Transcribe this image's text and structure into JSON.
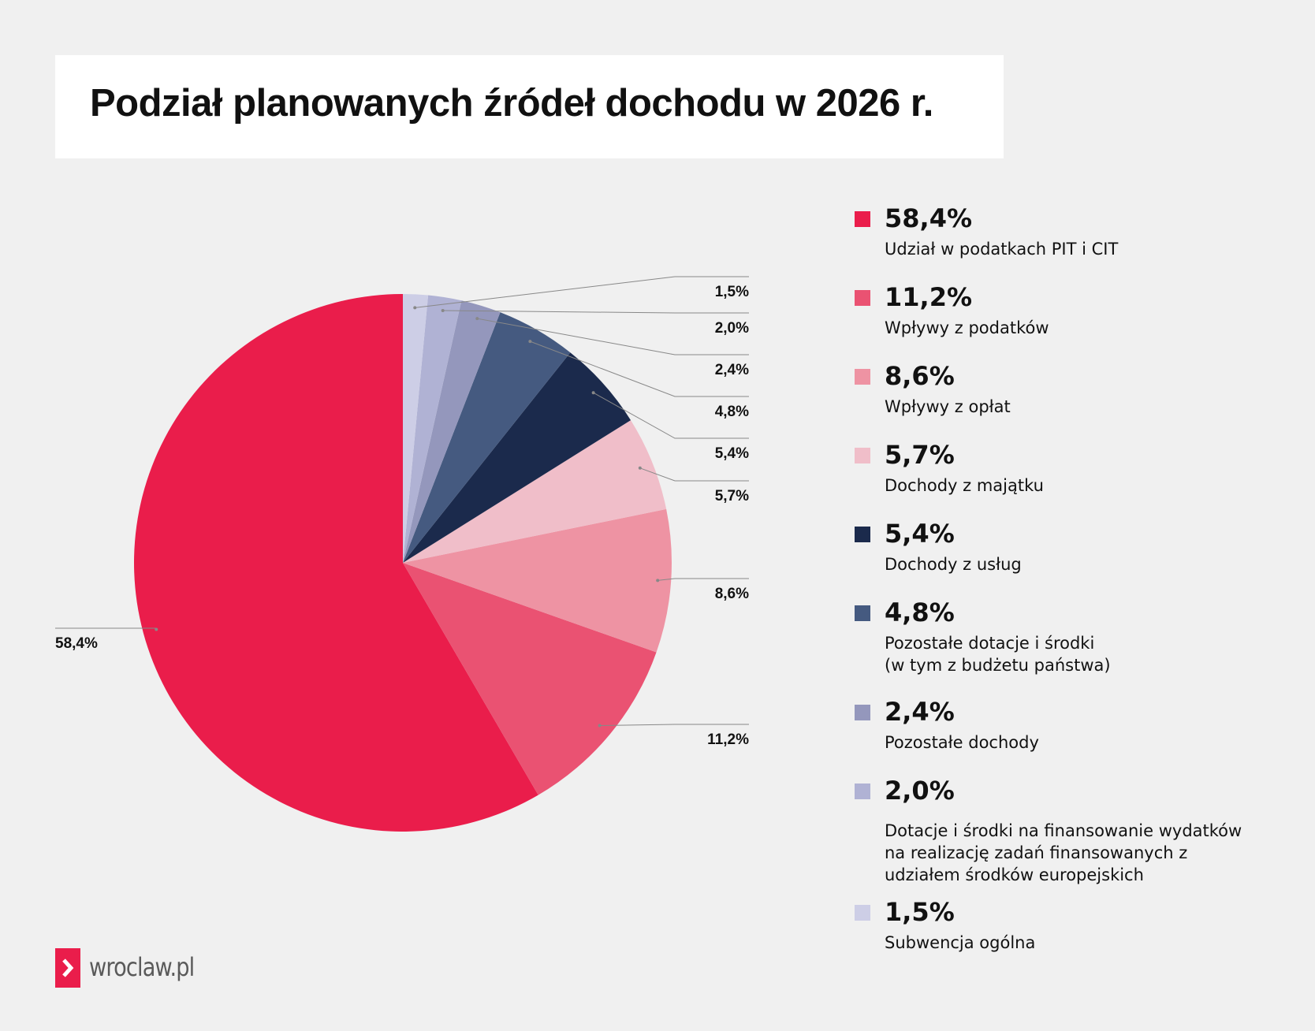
{
  "chart_data": {
    "type": "pie",
    "title": "Podział planowanych źródeł dochodu w 2026 r.",
    "categories": [
      "Udział w podatkach PIT i CIT",
      "Wpływy z podatków",
      "Wpływy z opłat",
      "Dochody z majątku",
      "Dochody z usług",
      "Pozostałe dotacje i środki\n(w tym z budżetu państwa)",
      "Pozostałe dochody",
      "Dotacje i środki na finansowanie wydatków\nna realizację zadań finansowanych z\nudziałem środków europejskich",
      "Subwencja ogólna"
    ],
    "values": [
      58.4,
      11.2,
      8.6,
      5.7,
      5.4,
      4.8,
      2.4,
      2.0,
      1.5
    ],
    "value_labels": [
      "58,4%",
      "11,2%",
      "8,6%",
      "5,7%",
      "5,4%",
      "4,8%",
      "2,4%",
      "2,0%",
      "1,5%"
    ],
    "colors": [
      "#ea1d4b",
      "#ea5272",
      "#ee93a3",
      "#f0bec9",
      "#1b2a4c",
      "#455a80",
      "#9497bc",
      "#b0b2d4",
      "#cdcee6"
    ],
    "legend": "right"
  },
  "logo": "wroclaw.pl"
}
